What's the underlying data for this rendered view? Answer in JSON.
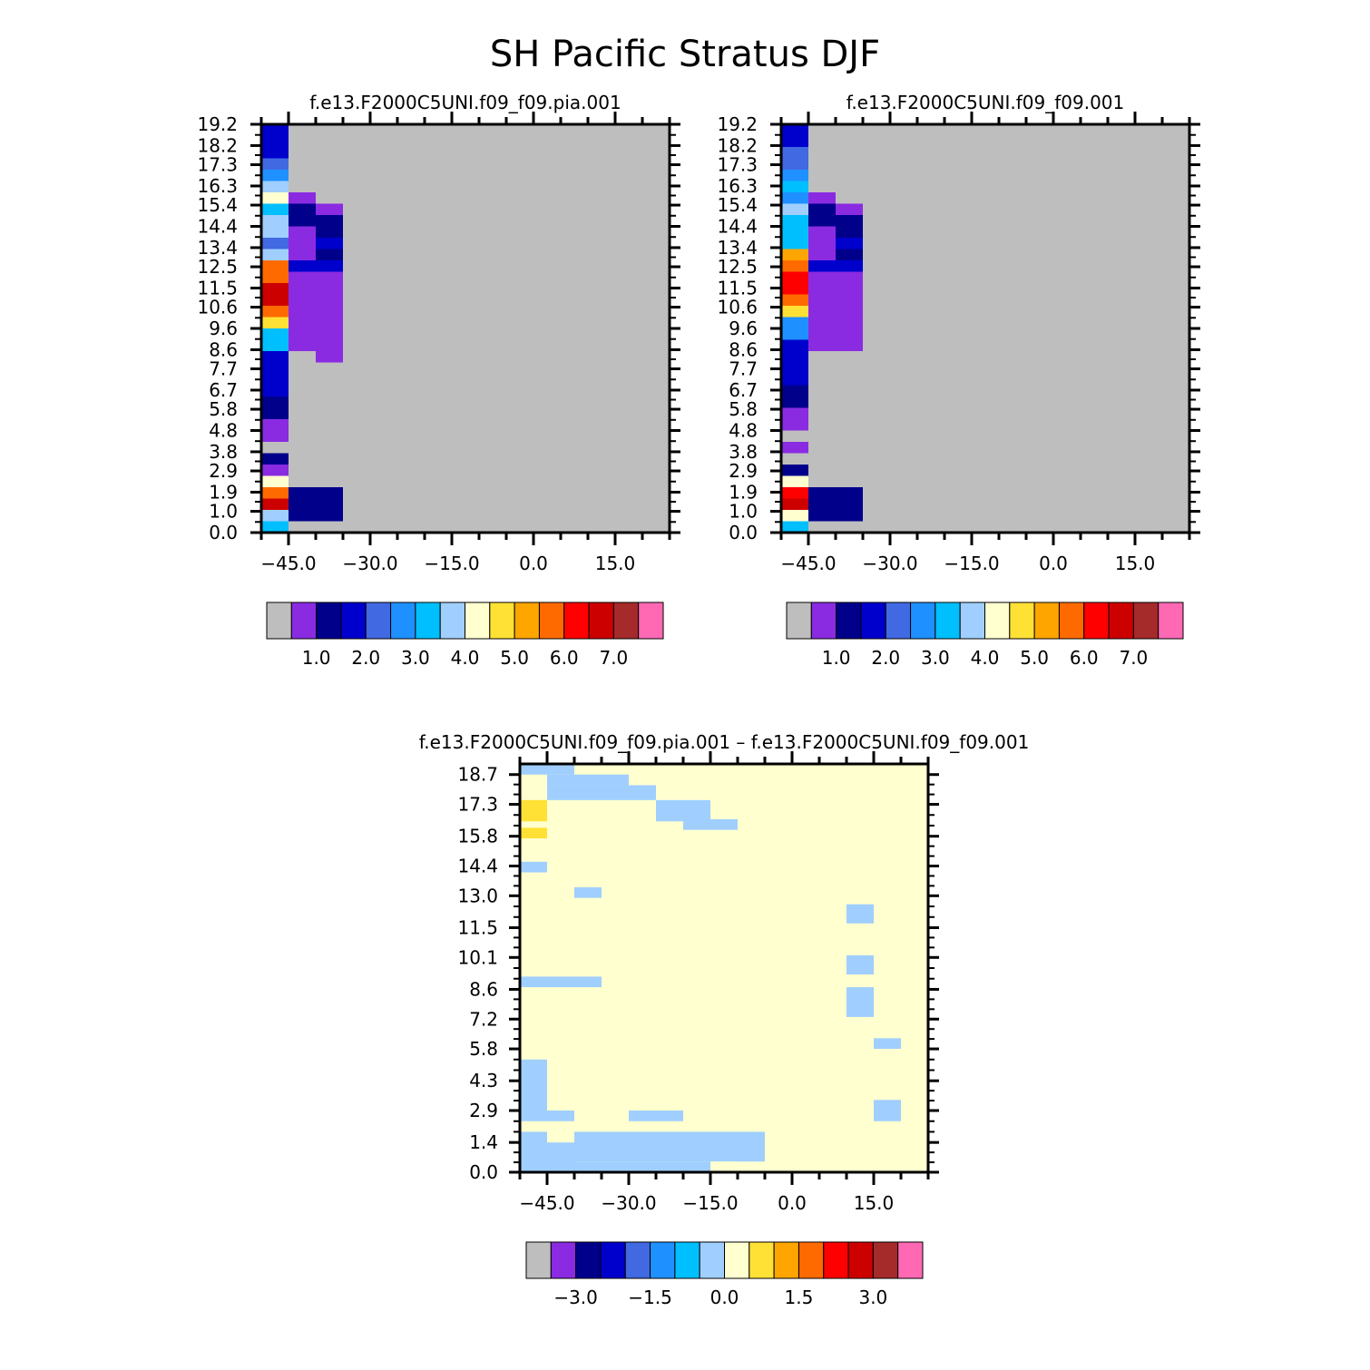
{
  "figure_title": "SH Pacific Stratus DJF",
  "colors": {
    "background_gray": "#BEBEBE",
    "palette_abs": [
      "#BEBEBE",
      "#8A2BE2",
      "#00008B",
      "#0000CD",
      "#4169E1",
      "#1E90FF",
      "#00BFFF",
      "#A0CFFF",
      "#FFFFD0",
      "#FFE135",
      "#FFA500",
      "#FF6A00",
      "#FF0000",
      "#CD0000",
      "#A52A2A",
      "#FF69B4"
    ],
    "palette_diff": [
      "#BEBEBE",
      "#8A2BE2",
      "#00008B",
      "#0000CD",
      "#4169E1",
      "#1E90FF",
      "#00BFFF",
      "#A0CFFF",
      "#FFFFD0",
      "#FFE135",
      "#FFA500",
      "#FF6A00",
      "#FF0000",
      "#CD0000",
      "#A52A2A",
      "#FF69B4"
    ]
  },
  "chart_data": [
    {
      "type": "heatmap",
      "title": "f.e13.F2000C5UNI.f09_f09.pia.001",
      "xlim": [
        -50,
        25
      ],
      "ylim": [
        0,
        19.2
      ],
      "xticks": [
        "-45.0",
        "-30.0",
        "-15.0",
        "0.0",
        "15.0"
      ],
      "xtick_values": [
        -45,
        -30,
        -15,
        0,
        15
      ],
      "yticks": [
        "19.2",
        "18.2",
        "17.3",
        "16.3",
        "15.4",
        "14.4",
        "13.4",
        "12.5",
        "11.5",
        "10.6",
        "9.6",
        "8.6",
        "7.7",
        "6.7",
        "5.8",
        "4.8",
        "3.8",
        "2.9",
        "1.9",
        "1.0",
        "0.0"
      ],
      "ytick_values": [
        19.2,
        18.2,
        17.3,
        16.3,
        15.4,
        14.4,
        13.4,
        12.5,
        11.5,
        10.6,
        9.6,
        8.6,
        7.7,
        6.7,
        5.8,
        4.8,
        3.8,
        2.9,
        1.9,
        1.0,
        0.0
      ],
      "column_width": 5,
      "bin_height": 0.96,
      "column_profiles": [
        {
          "x": -47.5,
          "bins_from_top": [
            3,
            3,
            3,
            4,
            5,
            7,
            8,
            6,
            7,
            7,
            4,
            7,
            11,
            11,
            13,
            13,
            11,
            9,
            6,
            6,
            3,
            3,
            3,
            3,
            2,
            2,
            1,
            1,
            0,
            2,
            1,
            8,
            11,
            13,
            7,
            6
          ]
        },
        {
          "x": -42.5,
          "bins_from_top": [
            0,
            0,
            0,
            0,
            0,
            0,
            1,
            2,
            2,
            1,
            1,
            1,
            3,
            1,
            1,
            1,
            1,
            1,
            1,
            1,
            0,
            0,
            0,
            0,
            0,
            0,
            0,
            0,
            0,
            0,
            0,
            0,
            2,
            2,
            2,
            0
          ]
        },
        {
          "x": -37.5,
          "bins_from_top": [
            0,
            0,
            0,
            0,
            0,
            0,
            0,
            1,
            2,
            2,
            3,
            2,
            3,
            1,
            1,
            1,
            1,
            1,
            1,
            1,
            1,
            0,
            0,
            0,
            0,
            0,
            0,
            0,
            0,
            0,
            0,
            0,
            2,
            2,
            2,
            0
          ]
        }
      ],
      "legend_tick_labels": [
        "1.0",
        "2.0",
        "3.0",
        "4.0",
        "5.0",
        "6.0",
        "7.0"
      ],
      "legend_box_count": 16
    },
    {
      "type": "heatmap",
      "title": "f.e13.F2000C5UNI.f09_f09.001",
      "xlim": [
        -50,
        25
      ],
      "ylim": [
        0,
        19.2
      ],
      "xticks": [
        "-45.0",
        "-30.0",
        "-15.0",
        "0.0",
        "15.0"
      ],
      "xtick_values": [
        -45,
        -30,
        -15,
        0,
        15
      ],
      "yticks": [
        "19.2",
        "18.2",
        "17.3",
        "16.3",
        "15.4",
        "14.4",
        "13.4",
        "12.5",
        "11.5",
        "10.6",
        "9.6",
        "8.6",
        "7.7",
        "6.7",
        "5.8",
        "4.8",
        "3.8",
        "2.9",
        "1.9",
        "1.0",
        "0.0"
      ],
      "ytick_values": [
        19.2,
        18.2,
        17.3,
        16.3,
        15.4,
        14.4,
        13.4,
        12.5,
        11.5,
        10.6,
        9.6,
        8.6,
        7.7,
        6.7,
        5.8,
        4.8,
        3.8,
        2.9,
        1.9,
        1.0,
        0.0
      ],
      "column_width": 5,
      "bin_height": 0.96,
      "column_profiles": [
        {
          "x": -47.5,
          "bins_from_top": [
            3,
            3,
            4,
            4,
            5,
            6,
            5,
            7,
            6,
            6,
            6,
            10,
            11,
            12,
            12,
            11,
            9,
            5,
            5,
            3,
            3,
            3,
            3,
            2,
            2,
            1,
            1,
            0,
            1,
            0,
            2,
            8,
            12,
            13,
            8,
            6
          ]
        },
        {
          "x": -42.5,
          "bins_from_top": [
            0,
            0,
            0,
            0,
            0,
            0,
            1,
            2,
            2,
            1,
            1,
            1,
            3,
            1,
            1,
            1,
            1,
            1,
            1,
            1,
            0,
            0,
            0,
            0,
            0,
            0,
            0,
            0,
            0,
            0,
            0,
            0,
            2,
            2,
            2,
            0
          ]
        },
        {
          "x": -37.5,
          "bins_from_top": [
            0,
            0,
            0,
            0,
            0,
            0,
            0,
            1,
            2,
            2,
            3,
            2,
            3,
            1,
            1,
            1,
            1,
            1,
            1,
            1,
            0,
            0,
            0,
            0,
            0,
            0,
            0,
            0,
            0,
            0,
            0,
            0,
            2,
            2,
            2,
            0
          ]
        }
      ],
      "legend_tick_labels": [
        "1.0",
        "2.0",
        "3.0",
        "4.0",
        "5.0",
        "6.0",
        "7.0"
      ],
      "legend_box_count": 16
    },
    {
      "type": "heatmap",
      "title": "f.e13.F2000C5UNI.f09_f09.pia.001 – f.e13.F2000C5UNI.f09_f09.001",
      "xlim": [
        -50,
        25
      ],
      "ylim": [
        0,
        19.2
      ],
      "xticks": [
        "-45.0",
        "-30.0",
        "-15.0",
        "0.0",
        "15.0"
      ],
      "xtick_values": [
        -45,
        -30,
        -15,
        0,
        15
      ],
      "yticks": [
        "18.7",
        "17.3",
        "15.8",
        "14.4",
        "13.0",
        "11.5",
        "10.1",
        "8.6",
        "7.2",
        "5.8",
        "4.3",
        "2.9",
        "1.4",
        "0.0"
      ],
      "ytick_values": [
        18.7,
        17.3,
        15.8,
        14.4,
        13.0,
        11.5,
        10.1,
        8.6,
        7.2,
        5.8,
        4.3,
        2.9,
        1.4,
        0.0
      ],
      "background_value": 0.0,
      "patches": [
        {
          "x0": -50,
          "x1": -40,
          "y0": 18.7,
          "y1": 19.2,
          "value": -0.5
        },
        {
          "x0": -45,
          "x1": -30,
          "y0": 18.2,
          "y1": 18.7,
          "value": -0.5
        },
        {
          "x0": -45,
          "x1": -25,
          "y0": 17.5,
          "y1": 18.2,
          "value": -0.5
        },
        {
          "x0": -25,
          "x1": -15,
          "y0": 16.5,
          "y1": 17.5,
          "value": -0.5
        },
        {
          "x0": -15,
          "x1": -10,
          "y0": 16.1,
          "y1": 16.6,
          "value": -0.5
        },
        {
          "x0": -20,
          "x1": -15,
          "y0": 16.1,
          "y1": 16.6,
          "value": -0.5
        },
        {
          "x0": -50,
          "x1": -45,
          "y0": 16.5,
          "y1": 17.5,
          "value": 1.0
        },
        {
          "x0": -50,
          "x1": -45,
          "y0": 15.7,
          "y1": 16.2,
          "value": 1.0
        },
        {
          "x0": -50,
          "x1": -45,
          "y0": 14.1,
          "y1": 14.6,
          "value": -0.5
        },
        {
          "x0": -40,
          "x1": -35,
          "y0": 12.9,
          "y1": 13.4,
          "value": -0.5
        },
        {
          "x0": 10,
          "x1": 15,
          "y0": 11.7,
          "y1": 12.6,
          "value": -0.5
        },
        {
          "x0": 10,
          "x1": 15,
          "y0": 9.3,
          "y1": 10.2,
          "value": -0.5
        },
        {
          "x0": -50,
          "x1": -35,
          "y0": 8.7,
          "y1": 9.2,
          "value": -0.5
        },
        {
          "x0": 10,
          "x1": 15,
          "y0": 7.3,
          "y1": 8.7,
          "value": -0.5
        },
        {
          "x0": 15,
          "x1": 20,
          "y0": 5.8,
          "y1": 6.3,
          "value": -0.5
        },
        {
          "x0": -50,
          "x1": -45,
          "y0": 2.4,
          "y1": 5.3,
          "value": -0.5
        },
        {
          "x0": -45,
          "x1": -40,
          "y0": 2.4,
          "y1": 2.9,
          "value": -0.5
        },
        {
          "x0": -30,
          "x1": -20,
          "y0": 2.4,
          "y1": 2.9,
          "value": -0.5
        },
        {
          "x0": 15,
          "x1": 20,
          "y0": 2.4,
          "y1": 3.4,
          "value": -0.5
        },
        {
          "x0": -50,
          "x1": -45,
          "y0": 0.0,
          "y1": 1.9,
          "value": -0.5
        },
        {
          "x0": -45,
          "x1": -40,
          "y0": 0.0,
          "y1": 1.4,
          "value": -0.5
        },
        {
          "x0": -40,
          "x1": -5,
          "y0": 0.5,
          "y1": 1.9,
          "value": -0.5
        },
        {
          "x0": -40,
          "x1": -15,
          "y0": 0.0,
          "y1": 0.5,
          "value": -0.5
        },
        {
          "x0": -15,
          "x1": -10,
          "y0": 0.0,
          "y1": 0.5,
          "value": 0.0
        }
      ],
      "legend_tick_labels": [
        "-3.0",
        "-1.5",
        "0.0",
        "1.5",
        "3.0"
      ],
      "legend_box_count": 16
    }
  ]
}
